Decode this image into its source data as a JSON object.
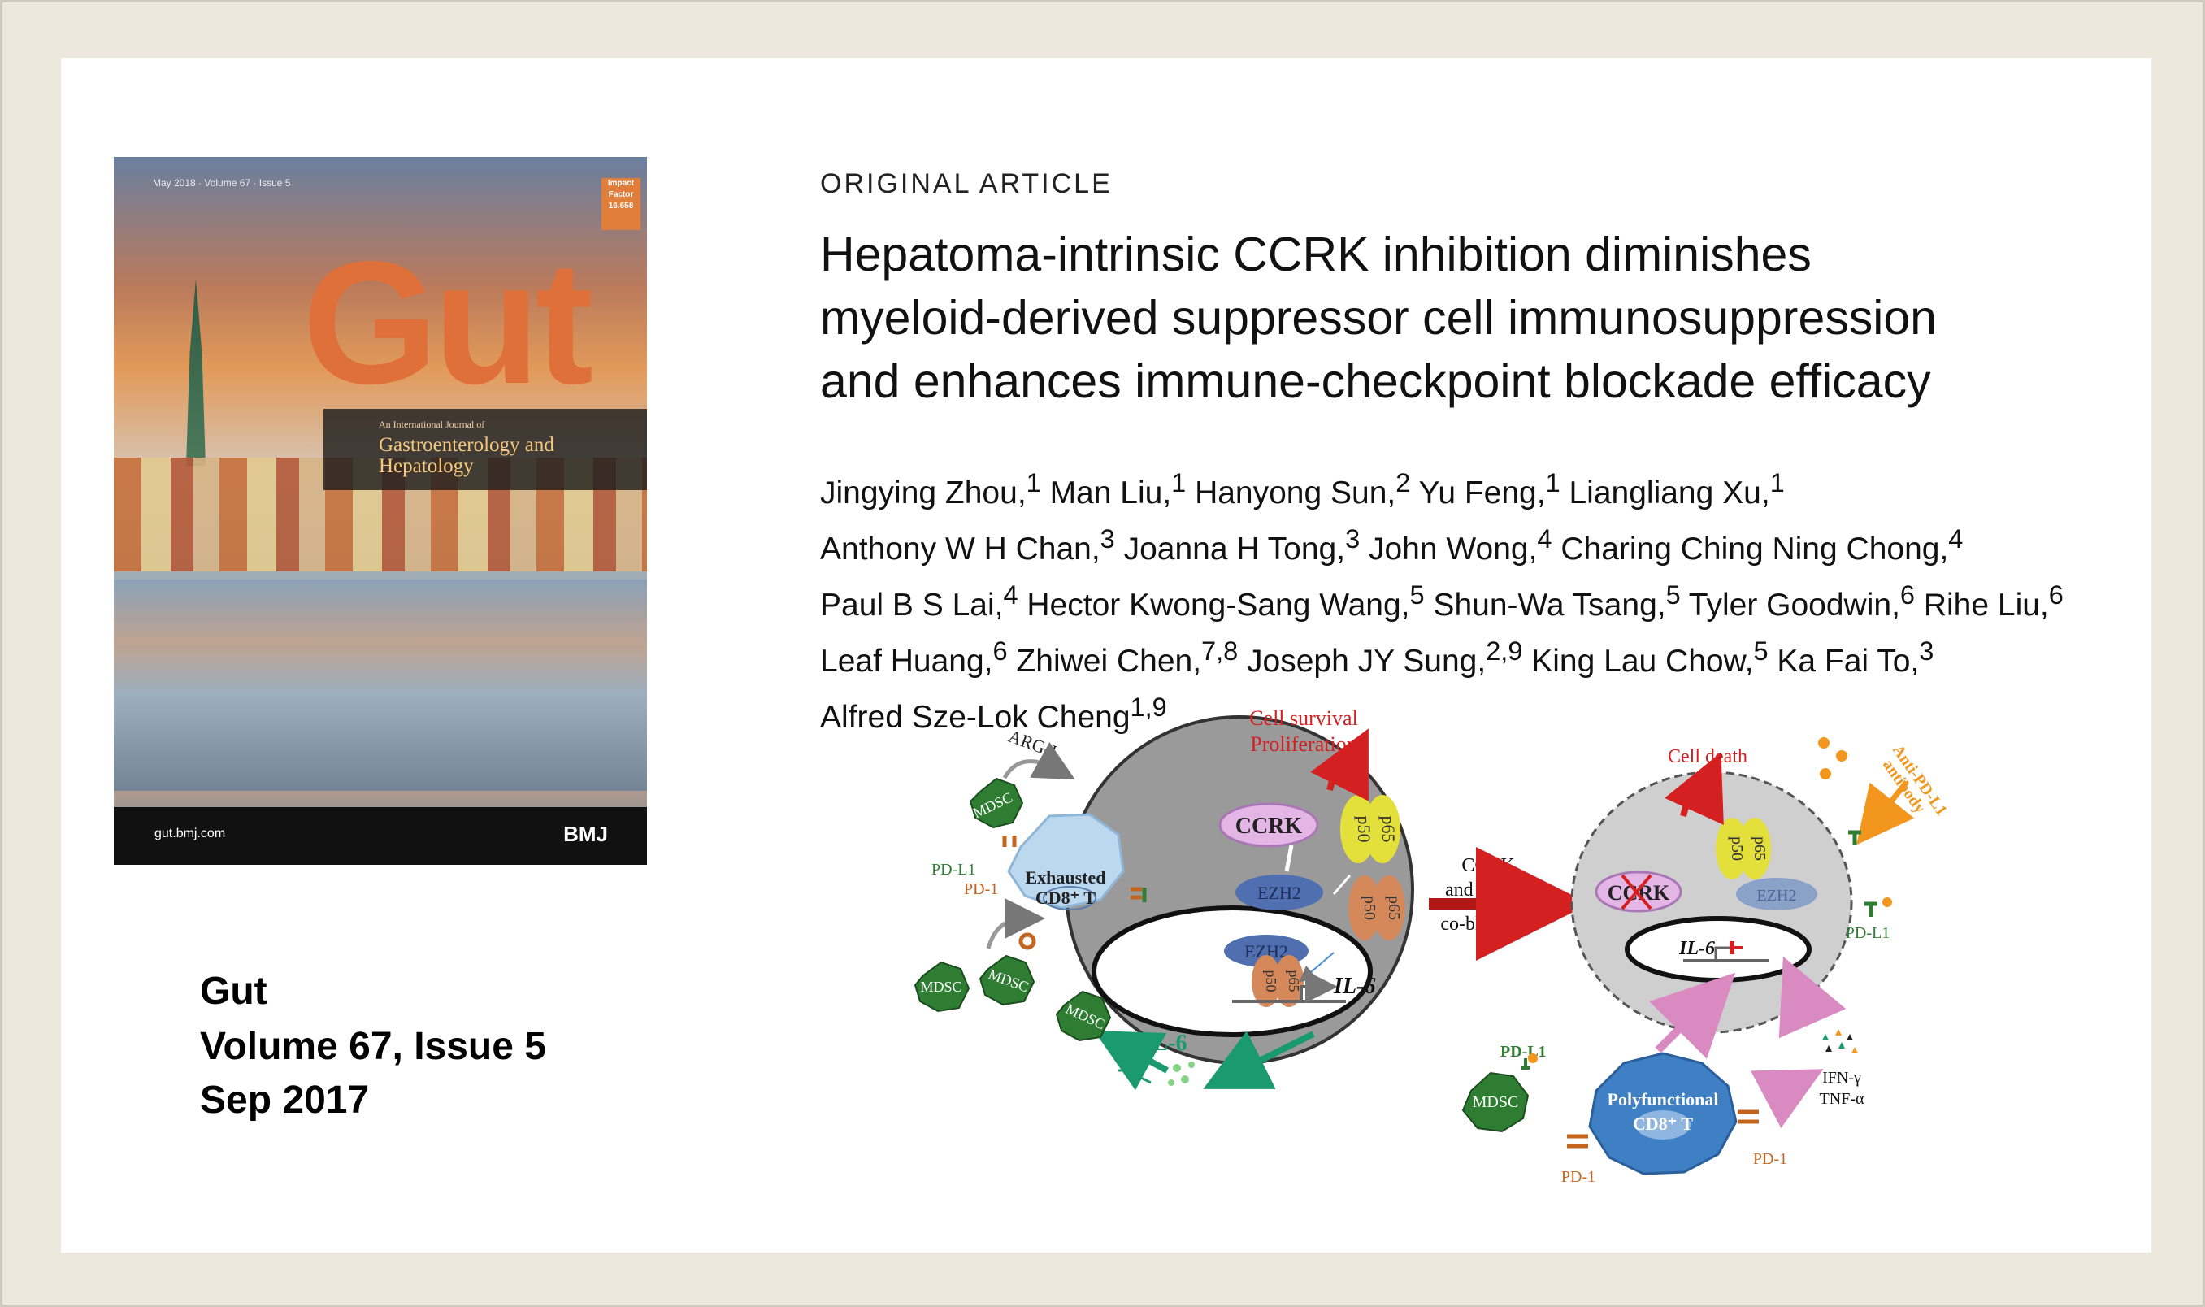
{
  "journal": {
    "cover": {
      "masthead": "Gut",
      "tagline": "An International Journal of",
      "subtitle": "Gastroenterology and Hepatology",
      "url": "gut.bmj.com",
      "publisher": "BMJ"
    },
    "name": "Gut",
    "volume_issue": "Volume 67, Issue 5",
    "date": "Sep 2017"
  },
  "article": {
    "type": "ORIGINAL ARTICLE",
    "title_lines": [
      "Hepatoma-intrinsic CCRK inhibition diminishes",
      "myeloid-derived suppressor cell immunosuppression",
      "and enhances immune-checkpoint blockade efficacy"
    ],
    "author_lines": [
      "Jingying Zhou,<sup>1</sup> Man Liu,<sup>1</sup> Hanyong Sun,<sup>2</sup> Yu Feng,<sup>1</sup> Liangliang Xu,<sup>1</sup>",
      "Anthony W H Chan,<sup>3</sup> Joanna H Tong,<sup>3</sup> John Wong,<sup>4</sup> Charing Ching Ning Chong,<sup>4</sup>",
      "Paul B S Lai,<sup>4</sup> Hector Kwong-Sang Wang,<sup>5</sup> Shun-Wa Tsang,<sup>5</sup> Tyler Goodwin,<sup>6</sup> Rihe Liu,<sup>6</sup>",
      "Leaf Huang,<sup>6</sup> Zhiwei Chen,<sup>7,8</sup> Joseph JY Sung,<sup>2,9</sup> King Lau Chow,<sup>5</sup> Ka Fai To,<sup>3</sup>",
      "Alfred Sze-Lok Cheng<sup>1,9</sup>"
    ]
  },
  "diagram": {
    "mdsc": "MDSC",
    "arg1": "ARG-I",
    "pdl1": "PD-L1",
    "pd1": "PD-1",
    "exhausted": "Exhausted",
    "cd8t": "CD8⁺ T",
    "ccrk": "CCRK",
    "p50": "p50",
    "p65": "p65",
    "ezh2": "EZH2",
    "il6": "IL-6",
    "cell_survival": "Cell survival",
    "proliferation": "Proliferation",
    "blockade_1": "CCRK",
    "blockade_2": "and PD-L1",
    "blockade_3": "co-blockade",
    "cell_death": "Cell death",
    "anti_pdl1_1": "Anti-PD-L1",
    "anti_pdl1_2": "antibody",
    "polyfunctional": "Polyfunctional",
    "ifng": "IFN-γ",
    "tnfa": "TNF-α",
    "colors": {
      "red": "#d42020",
      "green": "#1b9a6f",
      "orange": "#f2961e",
      "pink": "#d98bc1",
      "blue": "#3f7fc4",
      "mdsc_green": "#2e7d32"
    }
  }
}
